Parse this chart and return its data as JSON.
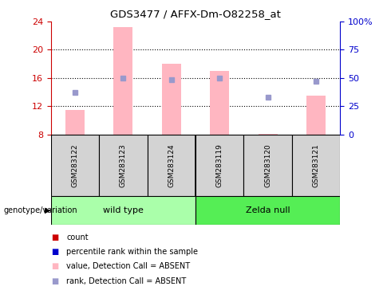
{
  "title": "GDS3477 / AFFX-Dm-O82258_at",
  "samples": [
    "GSM283122",
    "GSM283123",
    "GSM283124",
    "GSM283119",
    "GSM283120",
    "GSM283121"
  ],
  "group_labels": [
    "wild type",
    "Zelda null"
  ],
  "group_colors": [
    "#AAFFAA",
    "#55EE55"
  ],
  "bar_values": [
    11.5,
    23.2,
    18.0,
    17.0,
    8.1,
    13.5
  ],
  "bar_base": 8.0,
  "rank_dots": [
    14.0,
    16.0,
    15.8,
    16.0,
    13.3,
    15.5
  ],
  "ylim_left": [
    8,
    24
  ],
  "ylim_right": [
    0,
    100
  ],
  "left_ticks": [
    8,
    12,
    16,
    20,
    24
  ],
  "right_ticks": [
    0,
    25,
    50,
    75,
    100
  ],
  "right_tick_labels": [
    "0",
    "25",
    "50",
    "75",
    "100%"
  ],
  "bar_color": "#FFB6C1",
  "dot_color": "#9999CC",
  "left_axis_color": "#CC0000",
  "right_axis_color": "#0000CC",
  "sample_box_color": "#D3D3D3",
  "genotype_label": "genotype/variation",
  "legend_items": [
    {
      "label": "count",
      "color": "#CC0000"
    },
    {
      "label": "percentile rank within the sample",
      "color": "#0000CC"
    },
    {
      "label": "value, Detection Call = ABSENT",
      "color": "#FFB6C1"
    },
    {
      "label": "rank, Detection Call = ABSENT",
      "color": "#9999CC"
    }
  ]
}
